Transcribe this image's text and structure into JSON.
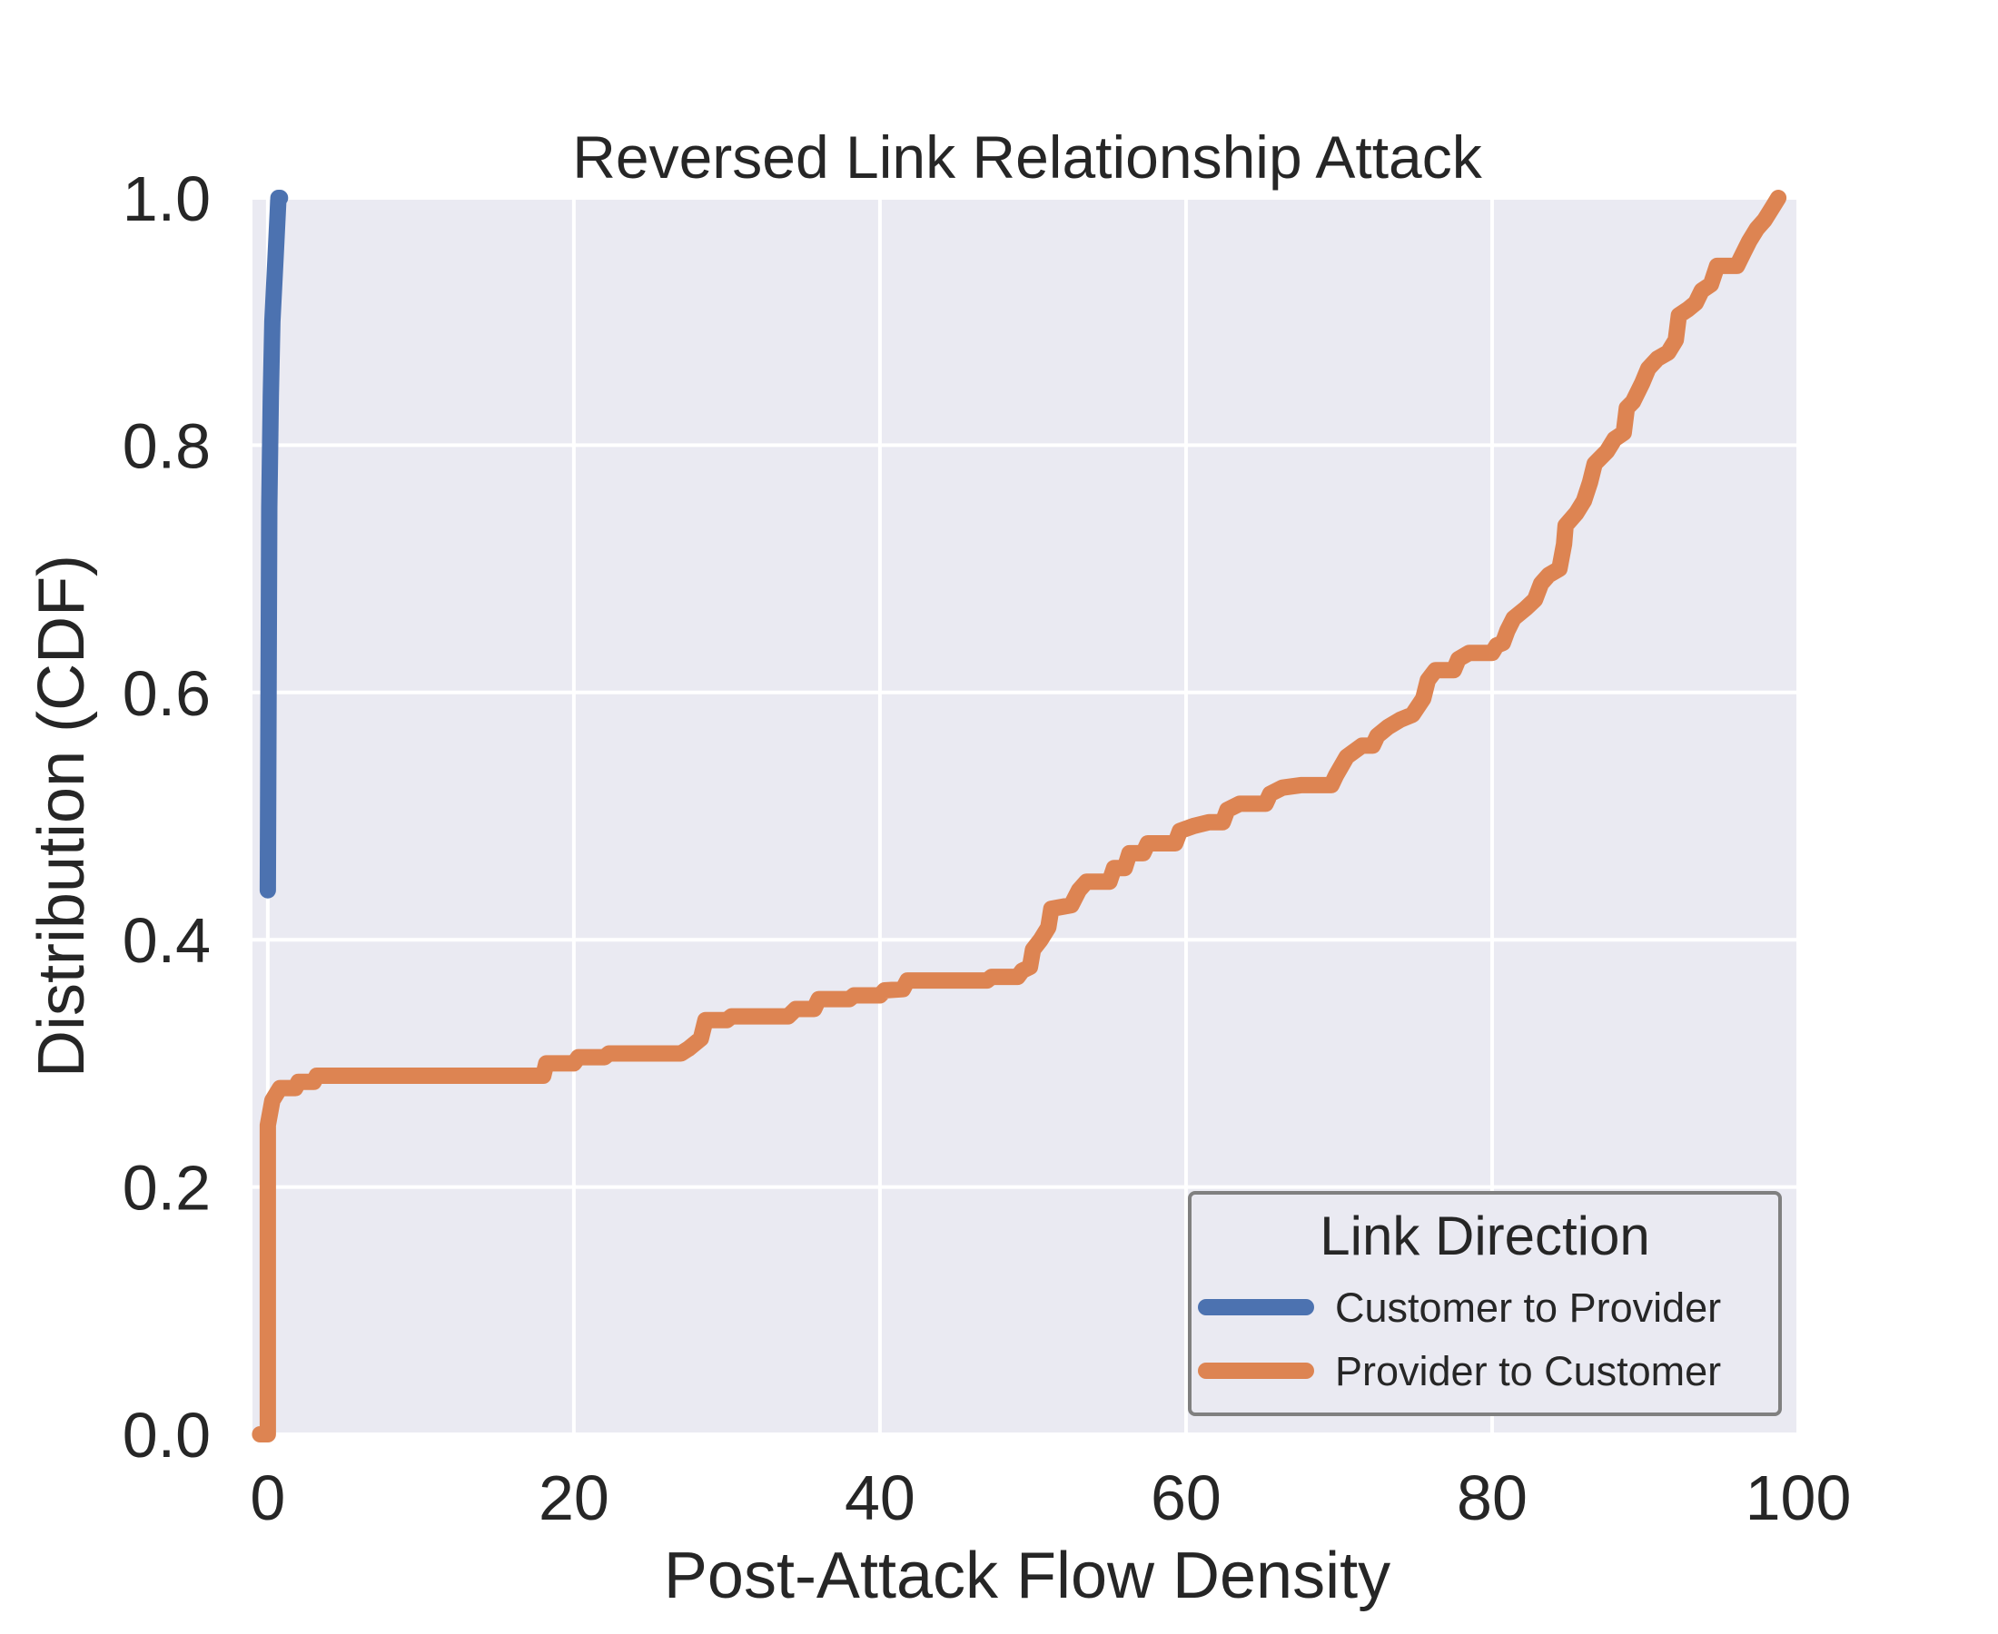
{
  "chart_data": {
    "type": "line",
    "title": "Reversed Link Relationship Attack",
    "xlabel": "Post-Attack Flow Density",
    "ylabel": "Distribution (CDF)",
    "xlim": [
      -1,
      100
    ],
    "ylim": [
      0,
      1
    ],
    "x_ticks": [
      "0",
      "20",
      "40",
      "60",
      "80",
      "100"
    ],
    "x_tick_values": [
      0,
      20,
      40,
      60,
      80,
      100
    ],
    "y_ticks": [
      "0.0",
      "0.2",
      "0.4",
      "0.6",
      "0.8",
      "1.0"
    ],
    "y_tick_values": [
      0,
      0.2,
      0.4,
      0.6,
      0.8,
      1.0
    ],
    "grid": true,
    "legend": {
      "title": "Link Direction",
      "placement": "lower-right"
    },
    "series": [
      {
        "name": "Customer to Provider",
        "color": "#4c72b0",
        "points": [
          [
            0,
            0.44
          ],
          [
            0.05,
            0.6
          ],
          [
            0.1,
            0.75
          ],
          [
            0.2,
            0.84
          ],
          [
            0.3,
            0.9
          ],
          [
            0.5,
            0.95
          ],
          [
            0.7,
            1.0
          ],
          [
            0.8,
            1.0
          ]
        ]
      },
      {
        "name": "Provider to Customer",
        "color": "#dd8452",
        "points": [
          [
            -0.5,
            0.0
          ],
          [
            0,
            0.0
          ],
          [
            0,
            0.25
          ],
          [
            0.3,
            0.27
          ],
          [
            0.8,
            0.28
          ],
          [
            1.8,
            0.28
          ],
          [
            2.0,
            0.285
          ],
          [
            3.0,
            0.285
          ],
          [
            3.2,
            0.29
          ],
          [
            18,
            0.29
          ],
          [
            18.2,
            0.3
          ],
          [
            20,
            0.3
          ],
          [
            20.3,
            0.305
          ],
          [
            22,
            0.305
          ],
          [
            22.3,
            0.308
          ],
          [
            27,
            0.308
          ],
          [
            27.5,
            0.312
          ],
          [
            28.3,
            0.32
          ],
          [
            28.6,
            0.335
          ],
          [
            30,
            0.335
          ],
          [
            30.3,
            0.338
          ],
          [
            34,
            0.338
          ],
          [
            34.5,
            0.344
          ],
          [
            35.7,
            0.344
          ],
          [
            36,
            0.352
          ],
          [
            38,
            0.352
          ],
          [
            38.3,
            0.355
          ],
          [
            40,
            0.355
          ],
          [
            40.3,
            0.359
          ],
          [
            41.5,
            0.36
          ],
          [
            41.8,
            0.367
          ],
          [
            47,
            0.367
          ],
          [
            47.3,
            0.37
          ],
          [
            49,
            0.37
          ],
          [
            49.3,
            0.375
          ],
          [
            49.8,
            0.378
          ],
          [
            50,
            0.392
          ],
          [
            50.5,
            0.4
          ],
          [
            51,
            0.41
          ],
          [
            51.2,
            0.425
          ],
          [
            52.5,
            0.428
          ],
          [
            53,
            0.44
          ],
          [
            53.5,
            0.447
          ],
          [
            55,
            0.447
          ],
          [
            55.3,
            0.458
          ],
          [
            56,
            0.458
          ],
          [
            56.3,
            0.47
          ],
          [
            57.2,
            0.47
          ],
          [
            57.5,
            0.478
          ],
          [
            59.3,
            0.478
          ],
          [
            59.6,
            0.488
          ],
          [
            60.5,
            0.492
          ],
          [
            61.5,
            0.495
          ],
          [
            62.4,
            0.495
          ],
          [
            62.7,
            0.505
          ],
          [
            63.5,
            0.51
          ],
          [
            65.2,
            0.51
          ],
          [
            65.5,
            0.518
          ],
          [
            66.3,
            0.523
          ],
          [
            67.5,
            0.525
          ],
          [
            69.5,
            0.525
          ],
          [
            69.8,
            0.533
          ],
          [
            70.5,
            0.548
          ],
          [
            71.5,
            0.557
          ],
          [
            72.2,
            0.557
          ],
          [
            72.5,
            0.565
          ],
          [
            73.2,
            0.572
          ],
          [
            74,
            0.578
          ],
          [
            74.8,
            0.582
          ],
          [
            75.5,
            0.595
          ],
          [
            75.8,
            0.61
          ],
          [
            76.3,
            0.618
          ],
          [
            77.5,
            0.618
          ],
          [
            77.8,
            0.627
          ],
          [
            78.5,
            0.632
          ],
          [
            80,
            0.632
          ],
          [
            80.3,
            0.638
          ],
          [
            80.7,
            0.64
          ],
          [
            81,
            0.65
          ],
          [
            81.4,
            0.66
          ],
          [
            82.2,
            0.668
          ],
          [
            82.8,
            0.675
          ],
          [
            83.2,
            0.688
          ],
          [
            83.7,
            0.695
          ],
          [
            84.4,
            0.7
          ],
          [
            84.7,
            0.72
          ],
          [
            84.8,
            0.735
          ],
          [
            85.5,
            0.745
          ],
          [
            86,
            0.755
          ],
          [
            86.4,
            0.77
          ],
          [
            86.7,
            0.785
          ],
          [
            87.5,
            0.795
          ],
          [
            88,
            0.805
          ],
          [
            88.6,
            0.81
          ],
          [
            88.8,
            0.83
          ],
          [
            89.2,
            0.835
          ],
          [
            89.8,
            0.85
          ],
          [
            90.2,
            0.862
          ],
          [
            90.8,
            0.87
          ],
          [
            91.5,
            0.875
          ],
          [
            92,
            0.885
          ],
          [
            92.2,
            0.905
          ],
          [
            92.8,
            0.91
          ],
          [
            93.3,
            0.915
          ],
          [
            93.7,
            0.925
          ],
          [
            94.3,
            0.93
          ],
          [
            94.7,
            0.945
          ],
          [
            96,
            0.945
          ],
          [
            96.4,
            0.955
          ],
          [
            96.8,
            0.965
          ],
          [
            97.3,
            0.975
          ],
          [
            97.8,
            0.982
          ],
          [
            98.3,
            0.992
          ],
          [
            98.7,
            1.0
          ]
        ]
      }
    ]
  }
}
